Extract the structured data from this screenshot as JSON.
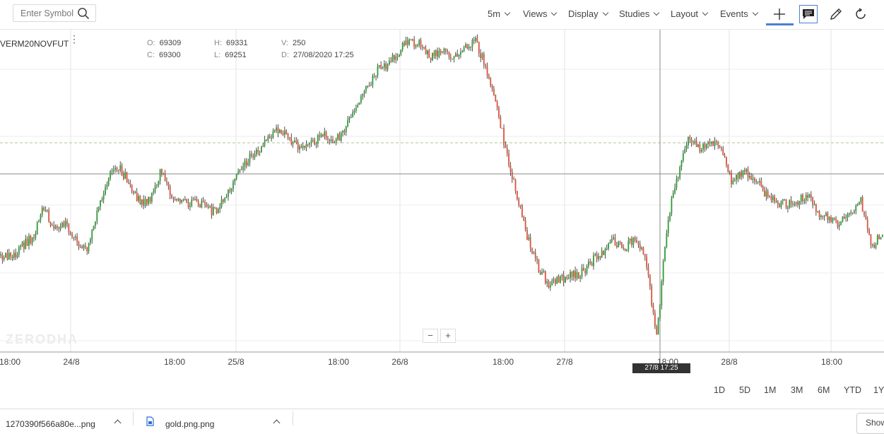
{
  "search": {
    "placeholder": "Enter Symbol"
  },
  "toolbar": {
    "interval": "5m",
    "menus": [
      "Views",
      "Display",
      "Studies",
      "Layout",
      "Events"
    ]
  },
  "symbol": "VERM20NOVFUT",
  "ohlc": {
    "open_label": "O:",
    "open": "69309",
    "close_label": "C:",
    "close": "69300",
    "high_label": "H:",
    "high": "69331",
    "low_label": "L:",
    "low": "69251",
    "volume_label": "V:",
    "volume": "250",
    "date_label": "D:",
    "date": "27/08/2020 17:25"
  },
  "watermark": "ZERODHA",
  "zoom": {
    "minus": "−",
    "plus": "+"
  },
  "xaxis": [
    "18:00",
    "24/8",
    "18:00",
    "25/8",
    "18:00",
    "26/8",
    "18:00",
    "27/8",
    "18:00",
    "28/8",
    "18:00"
  ],
  "crosshair_label": "27/8 17:25",
  "ranges": [
    "1D",
    "5D",
    "1M",
    "3M",
    "6M",
    "YTD",
    "1Y"
  ],
  "downloads": [
    "1270390f566a80e...png",
    "gold.png.png"
  ],
  "show_all": "Show",
  "colors": {
    "up": "#2e9b34",
    "down": "#d9533b",
    "wick": "#222222",
    "accent": "#4a7fd1"
  },
  "chart_data": {
    "type": "candlestick",
    "x_ticks": [
      "18:00",
      "24/8",
      "18:00",
      "25/8",
      "18:00",
      "26/8",
      "18:00",
      "27/8",
      "18:00",
      "28/8",
      "18:00"
    ],
    "close_path": [
      0.28,
      0.27,
      0.31,
      0.34,
      0.44,
      0.36,
      0.38,
      0.33,
      0.3,
      0.42,
      0.54,
      0.57,
      0.52,
      0.45,
      0.47,
      0.57,
      0.46,
      0.45,
      0.46,
      0.44,
      0.42,
      0.48,
      0.55,
      0.6,
      0.63,
      0.68,
      0.7,
      0.66,
      0.64,
      0.65,
      0.68,
      0.65,
      0.7,
      0.76,
      0.83,
      0.9,
      0.91,
      0.96,
      0.99,
      0.98,
      0.94,
      0.96,
      0.94,
      0.96,
      1.0,
      0.92,
      0.8,
      0.62,
      0.48,
      0.34,
      0.24,
      0.18,
      0.2,
      0.21,
      0.22,
      0.26,
      0.29,
      0.33,
      0.3,
      0.34,
      0.26,
      0.01,
      0.4,
      0.55,
      0.68,
      0.63,
      0.65,
      0.64,
      0.52,
      0.56,
      0.54,
      0.49,
      0.46,
      0.45,
      0.46,
      0.48,
      0.42,
      0.4,
      0.38,
      0.43,
      0.46,
      0.3,
      0.36
    ],
    "volatility": 0.02
  }
}
